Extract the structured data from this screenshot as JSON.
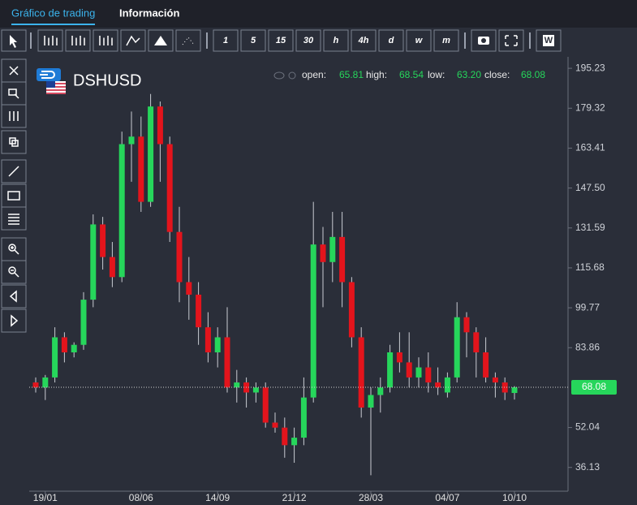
{
  "tabs": [
    "Gráfico de trading",
    "Información"
  ],
  "toolbar": {
    "intervals": [
      "1",
      "5",
      "15",
      "30",
      "h",
      "4h",
      "d",
      "w",
      "m"
    ],
    "extra": "W"
  },
  "symbol": "DSHUSD",
  "quote": {
    "labels": [
      "open:",
      "high:",
      "low:",
      "close:"
    ],
    "values": [
      "65.81",
      "68.54",
      "63.20",
      "68.08"
    ]
  },
  "chart_data": {
    "type": "candlestick",
    "up_color": "#26d65b",
    "down_color": "#e3141c",
    "categories": [
      null,
      "19/01",
      null,
      null,
      null,
      null,
      null,
      null,
      null,
      null,
      null,
      "08/06",
      null,
      null,
      null,
      null,
      null,
      null,
      null,
      "14/09",
      null,
      null,
      null,
      null,
      null,
      null,
      null,
      "21/12",
      null,
      null,
      null,
      null,
      null,
      null,
      null,
      "28/03",
      null,
      null,
      null,
      null,
      null,
      null,
      null,
      "04/07",
      null,
      null,
      null,
      null,
      null,
      null,
      "10/10"
    ],
    "open": [
      70,
      68,
      72,
      88,
      82,
      85,
      103,
      133,
      120,
      112,
      165,
      168,
      142,
      180,
      165,
      130,
      110,
      105,
      92,
      82,
      88,
      68,
      70,
      66,
      68,
      54,
      52,
      45,
      48,
      64,
      125,
      118,
      128,
      110,
      88,
      60,
      65,
      68,
      82,
      78,
      72,
      76,
      70,
      66,
      72,
      96,
      90,
      82,
      72,
      70,
      65.81
    ],
    "high": [
      72,
      73,
      92,
      90,
      86,
      106,
      137,
      136,
      126,
      170,
      178,
      176,
      185,
      182,
      168,
      140,
      120,
      110,
      98,
      92,
      100,
      75,
      72,
      70,
      70,
      58,
      56,
      52,
      72,
      142,
      132,
      138,
      138,
      112,
      92,
      68,
      72,
      85,
      90,
      90,
      80,
      82,
      76,
      74,
      102,
      98,
      92,
      88,
      74,
      72,
      68.54
    ],
    "low": [
      66,
      63,
      70,
      78,
      80,
      83,
      100,
      115,
      108,
      110,
      150,
      138,
      140,
      150,
      126,
      102,
      95,
      85,
      78,
      76,
      66,
      62,
      60,
      62,
      52,
      50,
      40,
      38,
      45,
      62,
      100,
      110,
      100,
      84,
      56,
      33,
      58,
      66,
      74,
      68,
      68,
      66,
      65,
      64,
      70,
      80,
      72,
      70,
      64,
      63,
      63.2
    ],
    "close": [
      68,
      72,
      88,
      82,
      85,
      103,
      133,
      120,
      112,
      165,
      168,
      142,
      180,
      165,
      130,
      110,
      105,
      92,
      82,
      88,
      68,
      70,
      66,
      68,
      54,
      52,
      45,
      48,
      64,
      125,
      118,
      128,
      110,
      88,
      60,
      65,
      68,
      82,
      78,
      72,
      76,
      70,
      68,
      72,
      96,
      90,
      82,
      72,
      70,
      66,
      68.08
    ],
    "ylim": [
      26.66,
      199.8
    ],
    "yticks": [
      195.23,
      179.32,
      163.41,
      {
        "value": 147.5,
        "label": "147.50"
      },
      131.59,
      115.68,
      99.77,
      83.86,
      52.04,
      36.13
    ]
  }
}
